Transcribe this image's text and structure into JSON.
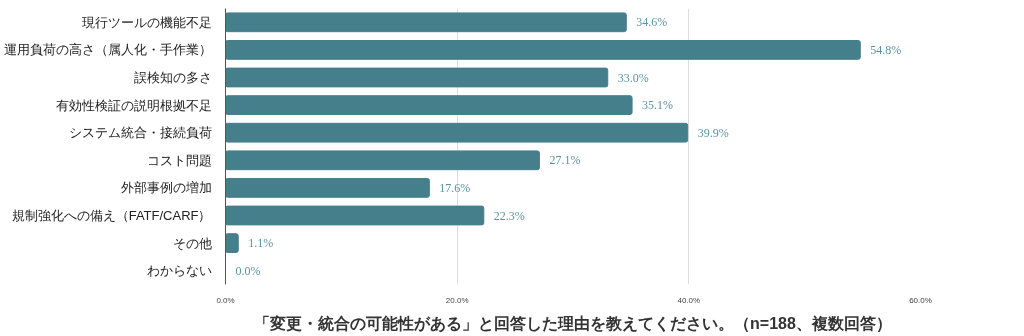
{
  "chart_data": {
    "type": "bar",
    "orientation": "horizontal",
    "title": "「変更・統合の可能性がある」と回答した理由を教えてください。（n=188、複数回答）",
    "categories": [
      "現行ツールの機能不足",
      "運用負荷の高さ（属人化・手作業）",
      "誤検知の多さ",
      "有効性検証の説明根拠不足",
      "システム統合・接続負荷",
      "コスト問題",
      "外部事例の増加",
      "規制強化への備え（FATF/CARF）",
      "その他",
      "わからない"
    ],
    "values": [
      34.6,
      54.8,
      33.0,
      35.1,
      39.9,
      27.1,
      17.6,
      22.3,
      1.1,
      0.0
    ],
    "value_labels": [
      "34.6%",
      "54.8%",
      "33.0%",
      "35.1%",
      "39.9%",
      "27.1%",
      "17.6%",
      "22.3%",
      "1.1%",
      "0.0%"
    ],
    "color": "#467f8c",
    "xlim": [
      0,
      60
    ],
    "xticks": [
      {
        "value": 0,
        "label": "0.0%"
      },
      {
        "value": 20,
        "label": "20.0%"
      },
      {
        "value": 40,
        "label": "40.0%"
      },
      {
        "value": 60,
        "label": "60.0%"
      }
    ],
    "grid": "x"
  }
}
